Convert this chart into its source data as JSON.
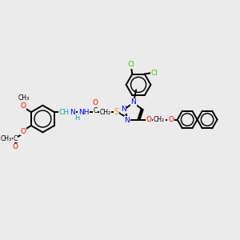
{
  "background_color": "#ebebeb",
  "figsize": [
    3.0,
    3.0
  ],
  "dpi": 100,
  "colors": {
    "C": "#000000",
    "N": "#0000ff",
    "O": "#ff0000",
    "S": "#ccaa00",
    "Cl": "#33cc00",
    "H_teal": "#00aaaa",
    "bond": "#000000"
  },
  "bond_lw": 1.4,
  "font_size": 6.5,
  "xlim": [
    0,
    10
  ],
  "ylim": [
    0,
    10
  ]
}
